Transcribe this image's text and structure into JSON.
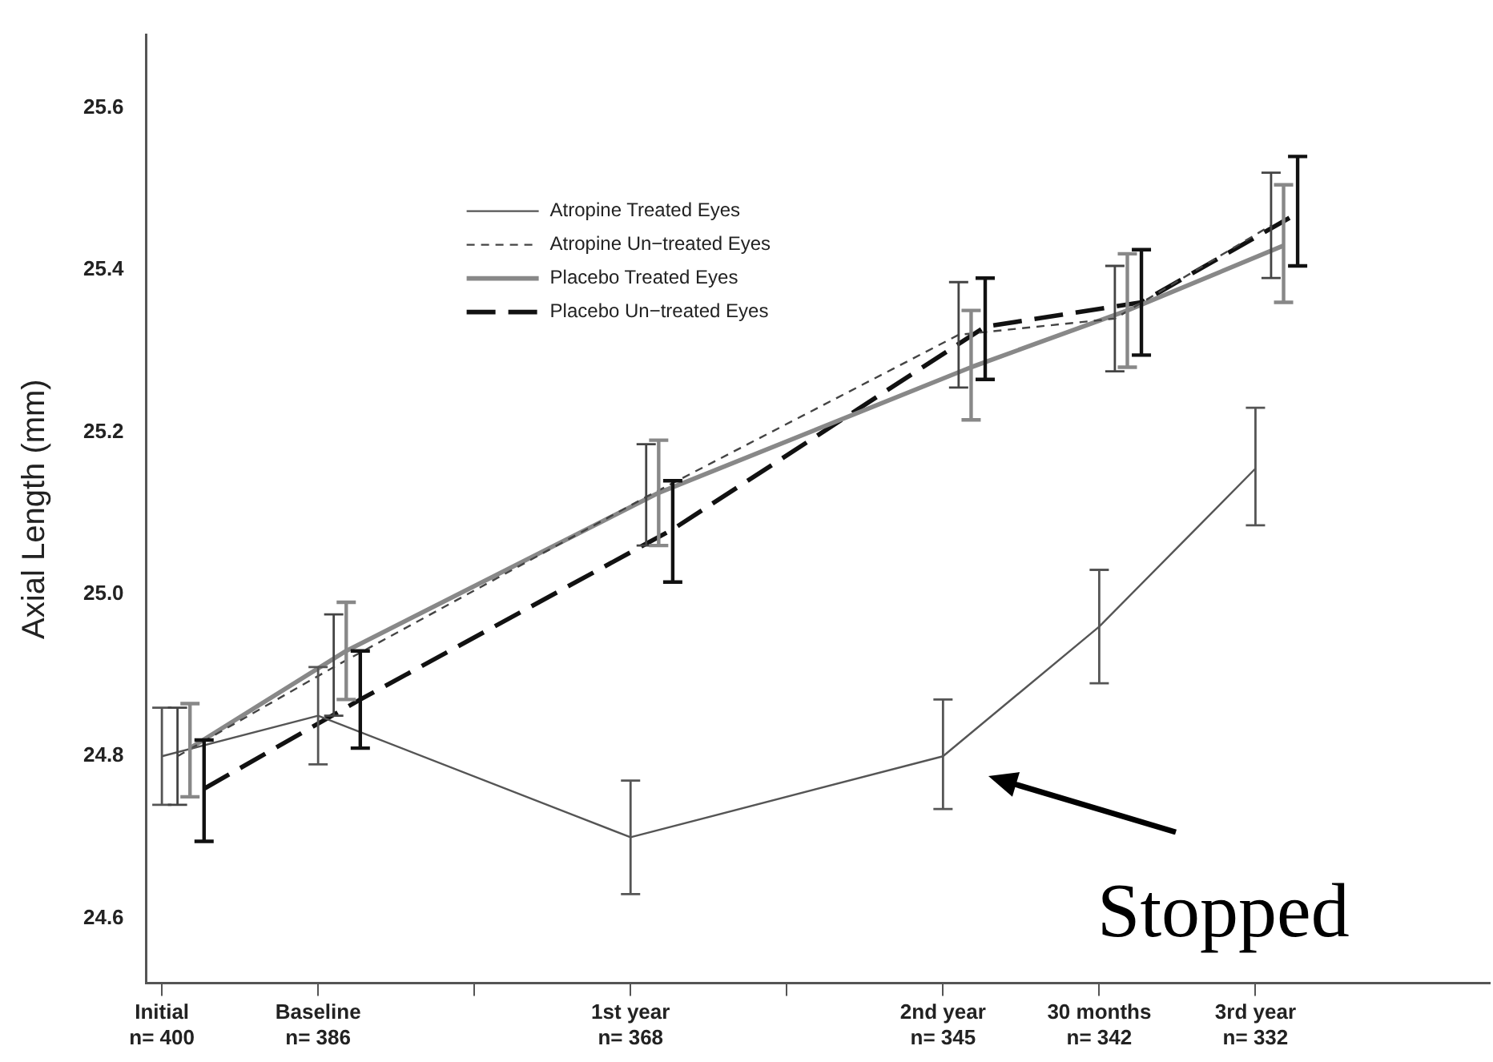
{
  "chart_data": {
    "type": "line",
    "ylabel": "Axial Length (mm)",
    "categories": [
      "Initial\nn= 400",
      "Baseline\nn= 386",
      null,
      "1st year\nn= 368",
      null,
      "2nd year\nn= 345",
      "30 months\nn= 342",
      "3rd year\nn= 332"
    ],
    "ylim": [
      24.52,
      25.69
    ],
    "yticks": [
      24.6,
      24.8,
      {
        "value": 25,
        "label": "25.0"
      },
      25.2,
      25.4,
      25.6
    ],
    "series": [
      {
        "name": "Atropine Treated Eyes",
        "color": "#555555",
        "line_style": "solid",
        "values": [
          24.8,
          24.85,
          null,
          24.7,
          null,
          24.8,
          24.96,
          25.155
        ],
        "errors": [
          [
            24.74,
            24.86
          ],
          [
            24.79,
            24.91
          ],
          null,
          [
            24.63,
            24.77
          ],
          null,
          [
            24.735,
            24.87
          ],
          [
            24.89,
            25.03
          ],
          [
            25.085,
            25.23
          ]
        ]
      },
      {
        "name": "Atropine Un−treated Eyes",
        "color": "#444444",
        "line_style": "dashed",
        "values": [
          24.8,
          24.91,
          null,
          25.12,
          null,
          25.32,
          25.34,
          25.455
        ],
        "errors": [
          [
            24.74,
            24.86
          ],
          [
            24.85,
            24.975
          ],
          null,
          [
            25.06,
            25.185
          ],
          null,
          [
            25.255,
            25.385
          ],
          [
            25.275,
            25.405
          ],
          [
            25.39,
            25.52
          ]
        ]
      },
      {
        "name": "Placebo Treated Eyes",
        "color": "#888888",
        "line_style": "solid",
        "values": [
          24.81,
          24.93,
          null,
          25.125,
          null,
          25.28,
          25.35,
          25.43
        ],
        "errors": [
          [
            24.75,
            24.865
          ],
          [
            24.87,
            24.99
          ],
          null,
          [
            25.06,
            25.19
          ],
          null,
          [
            25.215,
            25.35
          ],
          [
            25.28,
            25.42
          ],
          [
            25.36,
            25.505
          ]
        ]
      },
      {
        "name": "Placebo Un−treated Eyes",
        "color": "#111111",
        "line_style": "dashed",
        "values": [
          24.76,
          24.87,
          null,
          25.08,
          null,
          25.33,
          25.36,
          25.47
        ],
        "errors": [
          [
            24.695,
            24.82
          ],
          [
            24.81,
            24.93
          ],
          null,
          [
            25.015,
            25.14
          ],
          null,
          [
            25.265,
            25.39
          ],
          [
            25.295,
            25.425
          ],
          [
            25.405,
            25.54
          ]
        ]
      }
    ],
    "marker": "none",
    "grid": false,
    "legend": "top left",
    "annotations": [
      {
        "text": "Stopped",
        "x": "2nd year\nn= 345",
        "y": 24.8
      }
    ]
  }
}
